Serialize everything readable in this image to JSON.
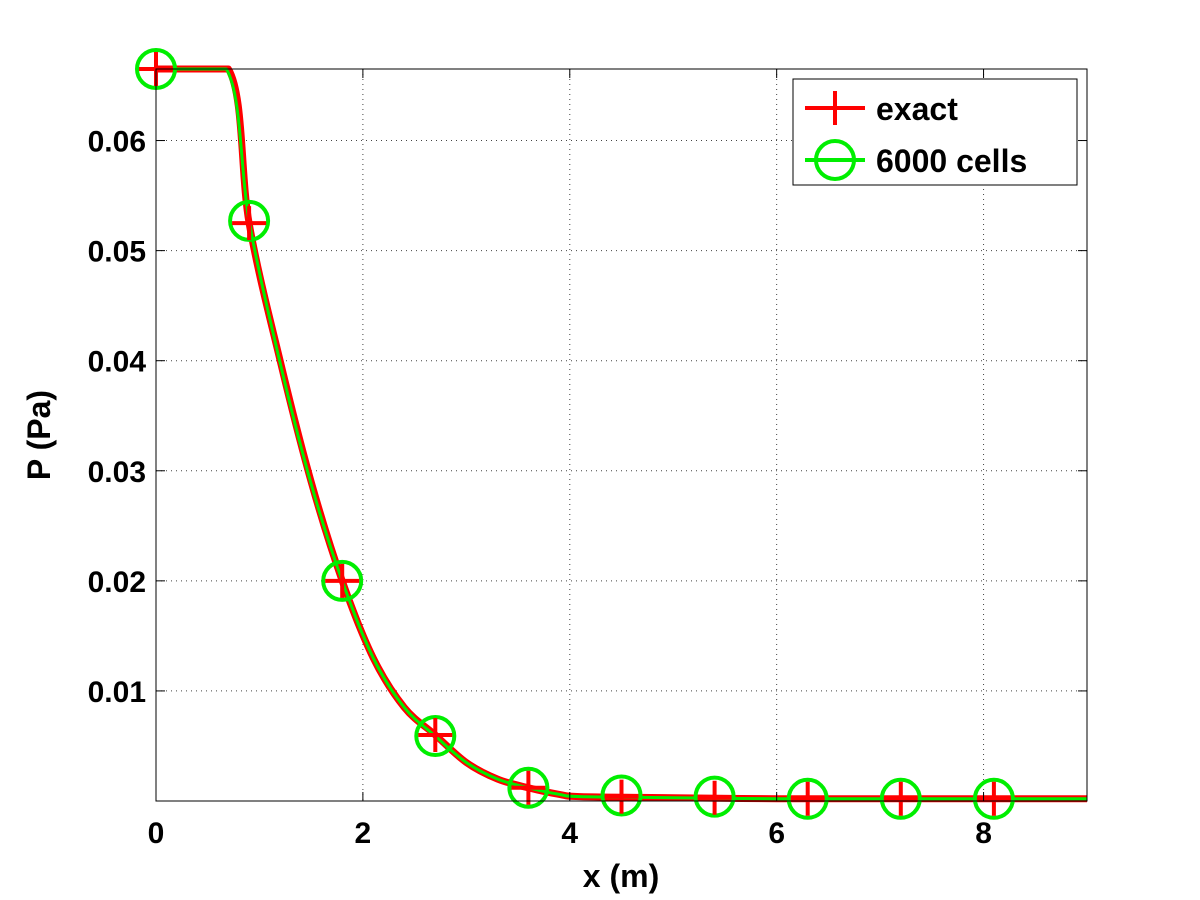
{
  "chart_data": {
    "type": "line",
    "title": "",
    "xlabel": "x (m)",
    "ylabel": "P (Pa)",
    "xlim": [
      0,
      9
    ],
    "ylim": [
      0,
      0.0665
    ],
    "x_ticks": [
      0,
      2,
      4,
      6,
      8
    ],
    "x_tick_labels": [
      "0",
      "2",
      "4",
      "6",
      "8"
    ],
    "y_ticks": [
      0.01,
      0.02,
      0.03,
      0.04,
      0.05,
      0.06
    ],
    "y_tick_labels": [
      "0.01",
      "0.02",
      "0.03",
      "0.04",
      "0.05",
      "0.06"
    ],
    "grid": true,
    "legend_position": "top-right",
    "colors": {
      "exact": "#ff0000",
      "cells": "#00ee00"
    },
    "series": [
      {
        "name": "exact",
        "marker": "plus",
        "color": "#ff0000",
        "x": [
          0,
          0.7,
          0.9,
          1.2,
          1.5,
          1.8,
          2.1,
          2.4,
          2.7,
          3.0,
          3.3,
          3.6,
          3.9,
          4.1,
          5.0,
          6.0,
          7.0,
          8.0,
          9.0
        ],
        "y": [
          0.0665,
          0.0665,
          0.0525,
          0.04,
          0.029,
          0.02,
          0.013,
          0.0085,
          0.006,
          0.0035,
          0.002,
          0.0012,
          0.0006,
          0.0004,
          0.0003,
          0.0002,
          0.0002,
          0.0002,
          0.0002
        ],
        "marker_x": [
          0,
          0.9,
          1.8,
          2.7,
          3.6,
          4.5,
          5.4,
          6.3,
          7.2,
          8.1
        ],
        "marker_y": [
          0.0665,
          0.0525,
          0.02,
          0.006,
          0.0012,
          0.0004,
          0.0003,
          0.0002,
          0.0002,
          0.0002
        ]
      },
      {
        "name": "6000 cells",
        "marker": "circle",
        "color": "#00ee00",
        "x": [
          0,
          0.68,
          0.9,
          1.2,
          1.5,
          1.8,
          2.1,
          2.4,
          2.7,
          3.0,
          3.3,
          3.6,
          3.9,
          4.1,
          5.0,
          6.0,
          7.0,
          8.0,
          9.0
        ],
        "y": [
          0.0665,
          0.0665,
          0.0527,
          0.0398,
          0.0288,
          0.02,
          0.013,
          0.0085,
          0.0059,
          0.0035,
          0.002,
          0.0012,
          0.0006,
          0.0004,
          0.0003,
          0.0002,
          0.0002,
          0.0002,
          0.0002
        ],
        "marker_x": [
          0,
          0.9,
          1.8,
          2.7,
          3.6,
          4.5,
          5.4,
          6.3,
          7.2,
          8.1
        ],
        "marker_y": [
          0.0665,
          0.0527,
          0.02,
          0.0059,
          0.0012,
          0.0005,
          0.0004,
          0.0002,
          0.0002,
          0.0002
        ]
      }
    ]
  }
}
